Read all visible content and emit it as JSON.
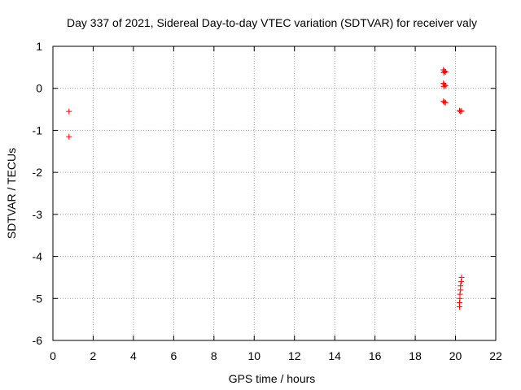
{
  "chart_data": {
    "type": "scatter",
    "title": "Day 337 of 2021, Sidereal Day-to-day VTEC variation (SDTVAR) for receiver valy",
    "xlabel": "GPS time / hours",
    "ylabel": "SDTVAR / TECUs",
    "xlim": [
      0,
      22
    ],
    "ylim": [
      -6,
      1
    ],
    "xticks": [
      0,
      2,
      4,
      6,
      8,
      10,
      12,
      14,
      16,
      18,
      20,
      22
    ],
    "yticks": [
      1,
      0,
      -1,
      -2,
      -3,
      -4,
      -5,
      -6
    ],
    "grid": true,
    "marker": "plus",
    "color": "#ff0000",
    "series": [
      {
        "name": "SDTVAR",
        "points": [
          [
            0.8,
            -0.55
          ],
          [
            0.8,
            -1.15
          ],
          [
            19.4,
            0.44
          ],
          [
            19.45,
            0.41
          ],
          [
            19.5,
            0.39
          ],
          [
            19.42,
            0.37
          ],
          [
            19.4,
            0.12
          ],
          [
            19.45,
            0.09
          ],
          [
            19.5,
            0.06
          ],
          [
            19.42,
            0.04
          ],
          [
            19.4,
            -0.31
          ],
          [
            19.45,
            -0.33
          ],
          [
            19.5,
            -0.34
          ],
          [
            20.2,
            -0.53
          ],
          [
            20.25,
            -0.55
          ],
          [
            20.3,
            -0.54
          ],
          [
            20.3,
            -4.5
          ],
          [
            20.28,
            -4.6
          ],
          [
            20.25,
            -4.7
          ],
          [
            20.25,
            -4.8
          ],
          [
            20.22,
            -4.9
          ],
          [
            20.22,
            -5.0
          ],
          [
            20.2,
            -5.1
          ],
          [
            20.2,
            -5.2
          ]
        ]
      }
    ]
  }
}
